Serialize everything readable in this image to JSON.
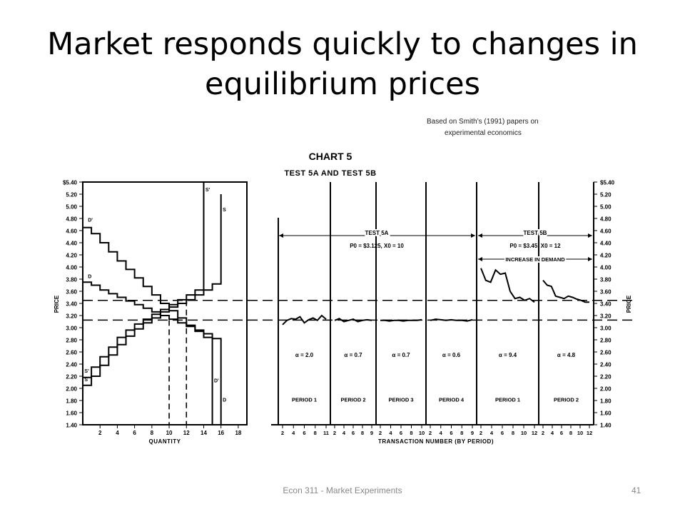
{
  "slide": {
    "title": "Market responds quickly to changes in equilibrium prices",
    "source_line1": "Based on Smith’s (1991) papers on",
    "source_line2": "experimental economics",
    "footer": "Econ 311 - Market Experiments",
    "page_number": "41"
  },
  "chart_data": {
    "type": "line",
    "title": "CHART 5",
    "subtitle": "TEST 5A AND TEST 5B",
    "ylabel": "PRICE",
    "ylim": [
      1.4,
      5.4
    ],
    "yticks": [
      "$5.40",
      "5.20",
      "5.00",
      "4.80",
      "4.60",
      "4.40",
      "4.20",
      "4.00",
      "3.80",
      "3.60",
      "3.40",
      "3.20",
      "3.00",
      "2.80",
      "2.60",
      "2.40",
      "2.20",
      "2.00",
      "1.80",
      "1.60",
      "1.40"
    ],
    "equilibrium_prices": [
      3.125,
      3.45
    ],
    "supply_demand": {
      "xlabel": "QUANTITY",
      "xlim": [
        0,
        19
      ],
      "xticks": [
        "2",
        "4",
        "6",
        "8",
        "10",
        "12",
        "14",
        "16",
        "18"
      ],
      "equilibrium_quantities": [
        10,
        12
      ],
      "curve_labels": [
        "D'",
        "D",
        "S'",
        "S",
        "S'",
        "S",
        "D'",
        "D"
      ],
      "demand_D": [
        [
          0,
          3.75
        ],
        [
          1,
          3.7
        ],
        [
          2,
          3.62
        ],
        [
          3,
          3.56
        ],
        [
          4,
          3.5
        ],
        [
          5,
          3.44
        ],
        [
          6,
          3.38
        ],
        [
          7,
          3.32
        ],
        [
          8,
          3.26
        ],
        [
          9,
          3.2
        ],
        [
          10,
          3.14
        ],
        [
          11,
          3.08
        ],
        [
          12,
          3.02
        ],
        [
          13,
          2.96
        ],
        [
          14,
          2.9
        ],
        [
          15,
          2.82
        ],
        [
          16,
          2.78
        ],
        [
          16,
          1.4
        ]
      ],
      "demand_D_prime": [
        [
          0,
          4.65
        ],
        [
          1,
          4.55
        ],
        [
          2,
          4.4
        ],
        [
          3,
          4.25
        ],
        [
          4,
          4.1
        ],
        [
          5,
          3.96
        ],
        [
          6,
          3.82
        ],
        [
          7,
          3.68
        ],
        [
          8,
          3.54
        ],
        [
          9,
          3.4
        ],
        [
          10,
          3.28
        ],
        [
          11,
          3.16
        ],
        [
          12,
          3.04
        ],
        [
          13,
          2.94
        ],
        [
          14,
          2.84
        ],
        [
          15,
          2.78
        ],
        [
          15,
          1.4
        ]
      ],
      "supply_S": [
        [
          0,
          2.05
        ],
        [
          1,
          2.2
        ],
        [
          2,
          2.38
        ],
        [
          3,
          2.55
        ],
        [
          4,
          2.72
        ],
        [
          5,
          2.86
        ],
        [
          6,
          2.98
        ],
        [
          7,
          3.08
        ],
        [
          8,
          3.16
        ],
        [
          9,
          3.26
        ],
        [
          10,
          3.34
        ],
        [
          11,
          3.4
        ],
        [
          12,
          3.46
        ],
        [
          13,
          3.54
        ],
        [
          14,
          3.62
        ],
        [
          15,
          3.72
        ],
        [
          16,
          3.8
        ],
        [
          16,
          5.2
        ]
      ],
      "supply_S_prime": [
        [
          0,
          2.18
        ],
        [
          1,
          2.35
        ],
        [
          2,
          2.52
        ],
        [
          3,
          2.68
        ],
        [
          4,
          2.84
        ],
        [
          5,
          2.96
        ],
        [
          6,
          3.06
        ],
        [
          7,
          3.14
        ],
        [
          8,
          3.22
        ],
        [
          9,
          3.3
        ],
        [
          10,
          3.38
        ],
        [
          11,
          3.46
        ],
        [
          12,
          3.54
        ],
        [
          13,
          3.62
        ],
        [
          14,
          3.72
        ],
        [
          14,
          5.4
        ]
      ]
    },
    "trading": {
      "xlabel": "TRANSACTION NUMBER (BY PERIOD)",
      "tests": [
        {
          "name": "TEST 5A",
          "params": "P0 = $3.125, X0 = 10"
        },
        {
          "name": "TEST 5B",
          "params": "P0 = $3.45, X0 = 12",
          "note": "INCREASE IN DEMAND"
        }
      ],
      "periods": [
        {
          "label": "PERIOD 1",
          "alpha": "α = 2.0",
          "ticks": [
            "2",
            "4",
            "6",
            "8",
            "11"
          ],
          "prices": [
            3.05,
            3.12,
            3.15,
            3.14,
            3.18,
            3.08,
            3.13,
            3.16,
            3.12,
            3.2,
            3.14
          ]
        },
        {
          "label": "PERIOD 2",
          "alpha": "α = 0.7",
          "ticks": [
            "2",
            "4",
            "6",
            "8",
            "9"
          ],
          "prices": [
            3.12,
            3.15,
            3.1,
            3.12,
            3.14,
            3.1,
            3.12,
            3.13,
            3.12
          ]
        },
        {
          "label": "PERIOD 3",
          "alpha": "α = 0.7",
          "ticks": [
            "2",
            "4",
            "6",
            "8",
            "10"
          ],
          "prices": [
            3.12,
            3.12,
            3.11,
            3.12,
            3.12,
            3.11,
            3.12,
            3.12,
            3.12,
            3.13
          ]
        },
        {
          "label": "PERIOD 4",
          "alpha": "α = 0.6",
          "ticks": [
            "2",
            "4",
            "6",
            "8",
            "9"
          ],
          "prices": [
            3.12,
            3.14,
            3.13,
            3.12,
            3.13,
            3.12,
            3.12,
            3.11,
            3.13
          ]
        },
        {
          "label": "PERIOD 1",
          "alpha": "α = 9.4",
          "ticks": [
            "2",
            "4",
            "6",
            "8",
            "10",
            "12"
          ],
          "prices": [
            3.98,
            3.78,
            3.75,
            3.95,
            3.88,
            3.9,
            3.6,
            3.48,
            3.5,
            3.45,
            3.48,
            3.42
          ]
        },
        {
          "label": "PERIOD 2",
          "alpha": "α = 4.8",
          "ticks": [
            "2",
            "4",
            "6",
            "8",
            "10",
            "12"
          ],
          "prices": [
            3.78,
            3.7,
            3.68,
            3.52,
            3.5,
            3.48,
            3.52,
            3.5,
            3.47,
            3.45,
            3.42,
            3.42
          ]
        }
      ]
    }
  }
}
